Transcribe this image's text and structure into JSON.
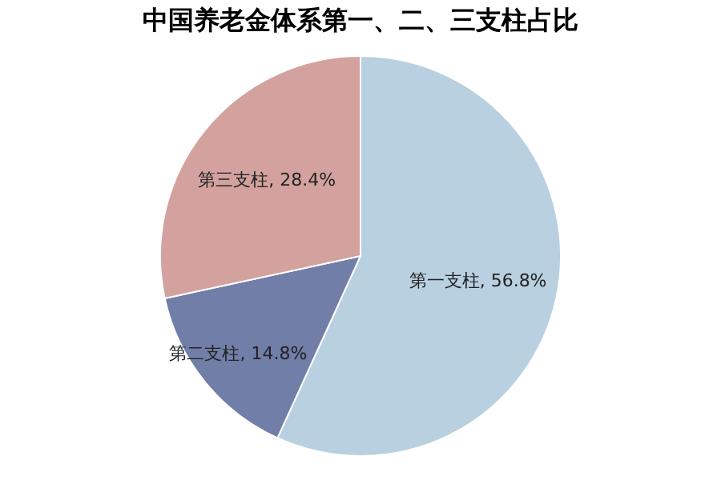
{
  "chart_data": {
    "type": "pie",
    "title": "中国养老金体系第一、二、三支柱占比",
    "categories": [
      "第一支柱",
      "第二支柱",
      "第三支柱"
    ],
    "values": [
      56.8,
      14.8,
      28.4
    ],
    "colors": [
      "#b8d0e0",
      "#717ea8",
      "#d3a29e"
    ],
    "value_labels": [
      "56.8%",
      "14.8%",
      "28.4%"
    ],
    "legend": false
  }
}
